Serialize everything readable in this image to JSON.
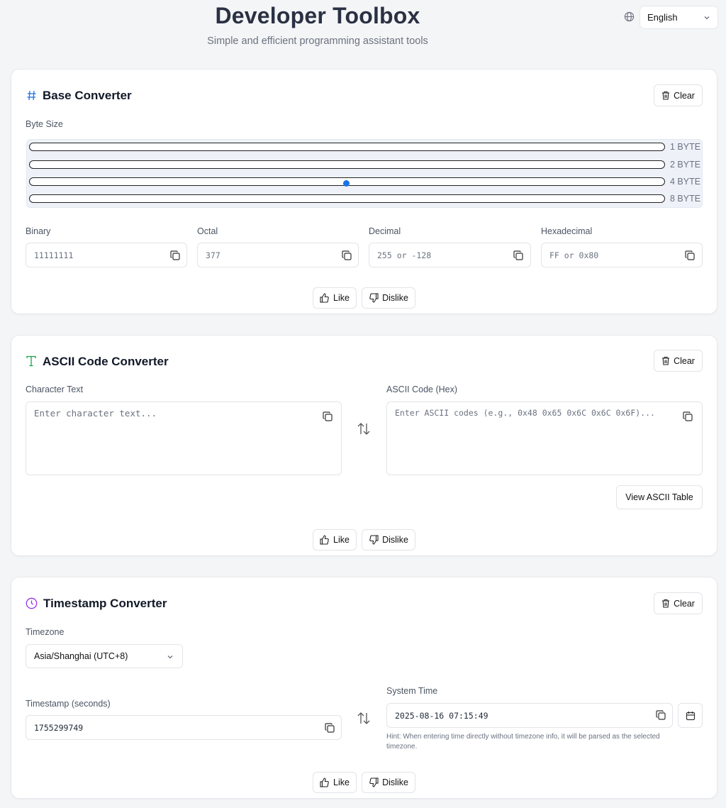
{
  "header": {
    "title": "Developer Toolbox",
    "subtitle": "Simple and efficient programming assistant tools",
    "language": "English"
  },
  "base_converter": {
    "title": "Base Converter",
    "clear_label": "Clear",
    "byte_size_label": "Byte Size",
    "byte_options": [
      "1 BYTE",
      "2 BYTE",
      "4 BYTE",
      "8 BYTE"
    ],
    "fields": [
      {
        "label": "Binary",
        "placeholder": "11111111"
      },
      {
        "label": "Octal",
        "placeholder": "377"
      },
      {
        "label": "Decimal",
        "placeholder": "255 or -128"
      },
      {
        "label": "Hexadecimal",
        "placeholder": "FF or 0x80"
      }
    ],
    "like_label": "Like",
    "dislike_label": "Dislike"
  },
  "ascii_converter": {
    "title": "ASCII Code Converter",
    "clear_label": "Clear",
    "char_label": "Character Text",
    "char_placeholder": "Enter character text...",
    "hex_label": "ASCII Code (Hex)",
    "hex_placeholder": "Enter ASCII codes (e.g., 0x48 0x65 0x6C 0x6C 0x6F)...",
    "view_table_label": "View ASCII Table",
    "like_label": "Like",
    "dislike_label": "Dislike"
  },
  "timestamp_converter": {
    "title": "Timestamp Converter",
    "clear_label": "Clear",
    "timezone_label": "Timezone",
    "timezone_value": "Asia/Shanghai (UTC+8)",
    "timestamp_label": "Timestamp (seconds)",
    "timestamp_value": "1755299749",
    "system_time_label": "System Time",
    "system_time_value": "2025-08-16 07:15:49",
    "hint": "Hint: When entering time directly without timezone info, it will be parsed as the selected timezone.",
    "like_label": "Like",
    "dislike_label": "Dislike"
  },
  "colors": {
    "accent_blue": "#1a73e8",
    "ascii_icon_green": "#16a34a",
    "clock_icon_purple": "#9333ea"
  }
}
